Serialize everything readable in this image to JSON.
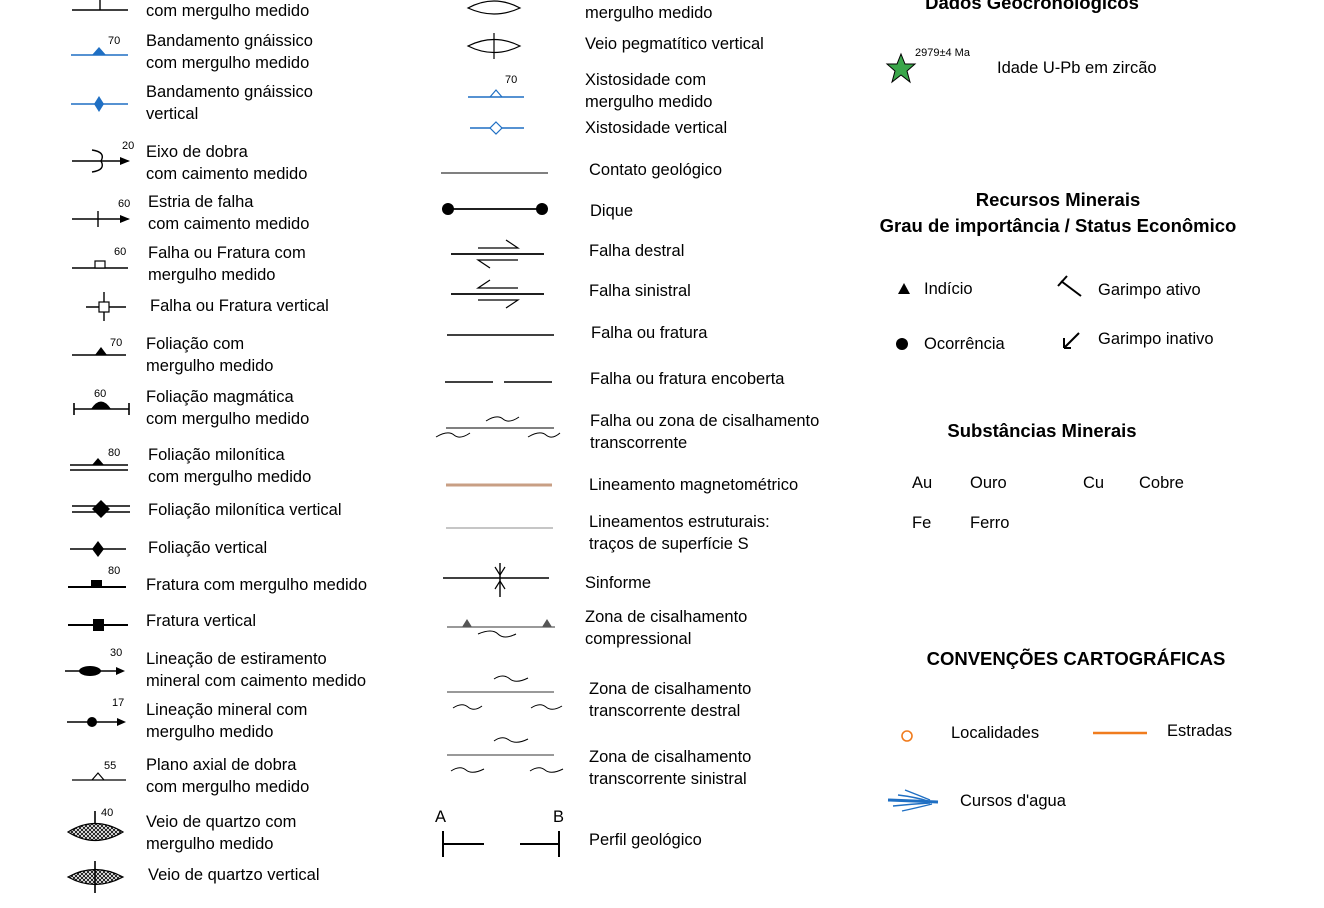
{
  "colors": {
    "gneiss_blue": "#1f6fc3",
    "star_green": "#3aa64a",
    "magnetometric_line": "#c89f84",
    "localities_orange": "#f07c1e",
    "roads_orange": "#f07c1e",
    "water_blue": "#1f6fc3"
  },
  "col1": {
    "r0": {
      "label": "com mergulho medido",
      "icon": "strike-dip-icon"
    },
    "r1": {
      "label": "Bandamento gnáissico\ncom mergulho medido",
      "value": "70",
      "icon": "gneissic-banding-dip-icon"
    },
    "r2": {
      "label": "Bandamento gnáissico\nvertical",
      "icon": "gneissic-banding-vertical-icon"
    },
    "r3": {
      "label": "Eixo de dobra\ncom caimento medido",
      "value": "20",
      "icon": "fold-axis-icon"
    },
    "r4": {
      "label": "Estria de falha\ncom caimento medido",
      "value": "60",
      "icon": "fault-striation-icon"
    },
    "r5": {
      "label": "Falha ou Fratura com\nmergulho medido",
      "value": "60",
      "icon": "fault-dip-icon"
    },
    "r6": {
      "label": "Falha ou Fratura vertical",
      "icon": "fault-vertical-icon"
    },
    "r7": {
      "label": "Foliação com\nmergulho medido",
      "value": "70",
      "icon": "foliation-dip-icon"
    },
    "r8": {
      "label": "Foliação magmática\ncom mergulho medido",
      "value": "60",
      "icon": "magmatic-foliation-icon"
    },
    "r9": {
      "label": "Foliação milonítica\ncom mergulho medido",
      "value": "80",
      "icon": "mylonitic-foliation-dip-icon"
    },
    "r10": {
      "label": "Foliação milonítica vertical",
      "icon": "mylonitic-foliation-vertical-icon"
    },
    "r11": {
      "label": "Foliação vertical",
      "icon": "foliation-vertical-icon"
    },
    "r12": {
      "label": "Fratura com mergulho medido",
      "value": "80",
      "icon": "fracture-dip-icon"
    },
    "r13": {
      "label": "Fratura vertical",
      "icon": "fracture-vertical-icon"
    },
    "r14": {
      "label": "Lineação de estiramento\nmineral com caimento medido",
      "value": "30",
      "icon": "stretching-lineation-icon"
    },
    "r15": {
      "label": "Lineação mineral com\nmergulho medido",
      "value": "17",
      "icon": "mineral-lineation-icon"
    },
    "r16": {
      "label": "Plano axial de dobra\ncom mergulho medido",
      "value": "55",
      "icon": "axial-plane-icon"
    },
    "r17": {
      "label": "Veio de quartzo com\nmergulho medido",
      "value": "40",
      "icon": "quartz-vein-dip-icon"
    },
    "r18": {
      "label": "Veio de quartzo vertical",
      "icon": "quartz-vein-vertical-icon"
    }
  },
  "col2": {
    "r0": {
      "label": "mergulho medido",
      "icon": "pegmatite-vein-dip-icon"
    },
    "r1": {
      "label": "Veio pegmatítico vertical",
      "icon": "pegmatite-vein-vertical-icon"
    },
    "r2": {
      "label": "Xistosidade com\nmergulho medido",
      "value": "70",
      "icon": "schistosity-dip-icon"
    },
    "r3": {
      "label": "Xistosidade vertical",
      "icon": "schistosity-vertical-icon"
    },
    "r4": {
      "label": "Contato geológico",
      "icon": "geologic-contact-icon"
    },
    "r5": {
      "label": "Dique",
      "icon": "dike-icon"
    },
    "r6": {
      "label": "Falha destral",
      "icon": "dextral-fault-icon"
    },
    "r7": {
      "label": "Falha sinistral",
      "icon": "sinistral-fault-icon"
    },
    "r8": {
      "label": "Falha ou fratura",
      "icon": "fault-line-icon"
    },
    "r9": {
      "label": "Falha ou fratura encoberta",
      "icon": "covered-fault-icon"
    },
    "r10": {
      "label": "Falha ou zona de cisalhamento\ntranscorrente",
      "icon": "transcurrent-shear-icon"
    },
    "r11": {
      "label": "Lineamento magnetométrico",
      "icon": "magnetometric-lineament-icon"
    },
    "r12": {
      "label": "Lineamentos estruturais:\ntraços de superfície S",
      "icon": "structural-lineament-icon"
    },
    "r13": {
      "label": "Sinforme",
      "icon": "synform-icon"
    },
    "r14": {
      "label": "Zona de cisalhamento\ncompressional",
      "icon": "compressional-shear-icon"
    },
    "r15": {
      "label": "Zona de cisalhamento\ntranscorrente destral",
      "icon": "dextral-shear-icon"
    },
    "r16": {
      "label": "Zona de cisalhamento\ntranscorrente sinistral",
      "icon": "sinistral-shear-icon"
    },
    "r17": {
      "label": "Perfil geológico",
      "end_a": "A",
      "end_b": "B",
      "icon": "geologic-profile-icon"
    }
  },
  "geochron": {
    "title": "Dados Geocronológicos",
    "age_label": "2979±4 Ma",
    "item_label": "Idade U-Pb em zircão",
    "icon": "star-icon"
  },
  "minerals": {
    "title": "Recursos Minerais\nGrau de importância / Status Econômico",
    "indicio": "Indício",
    "ocorrencia": "Ocorrência",
    "garimpo_ativo": "Garimpo ativo",
    "garimpo_inativo": "Garimpo inativo"
  },
  "substances": {
    "title": "Substâncias Minerais",
    "items": [
      {
        "code": "Au",
        "name": "Ouro"
      },
      {
        "code": "Cu",
        "name": "Cobre"
      },
      {
        "code": "Fe",
        "name": "Ferro"
      }
    ]
  },
  "conventions": {
    "title": "CONVENÇÕES CARTOGRÁFICAS",
    "localidades": "Localidades",
    "estradas": "Estradas",
    "cursos": "Cursos d'agua"
  }
}
